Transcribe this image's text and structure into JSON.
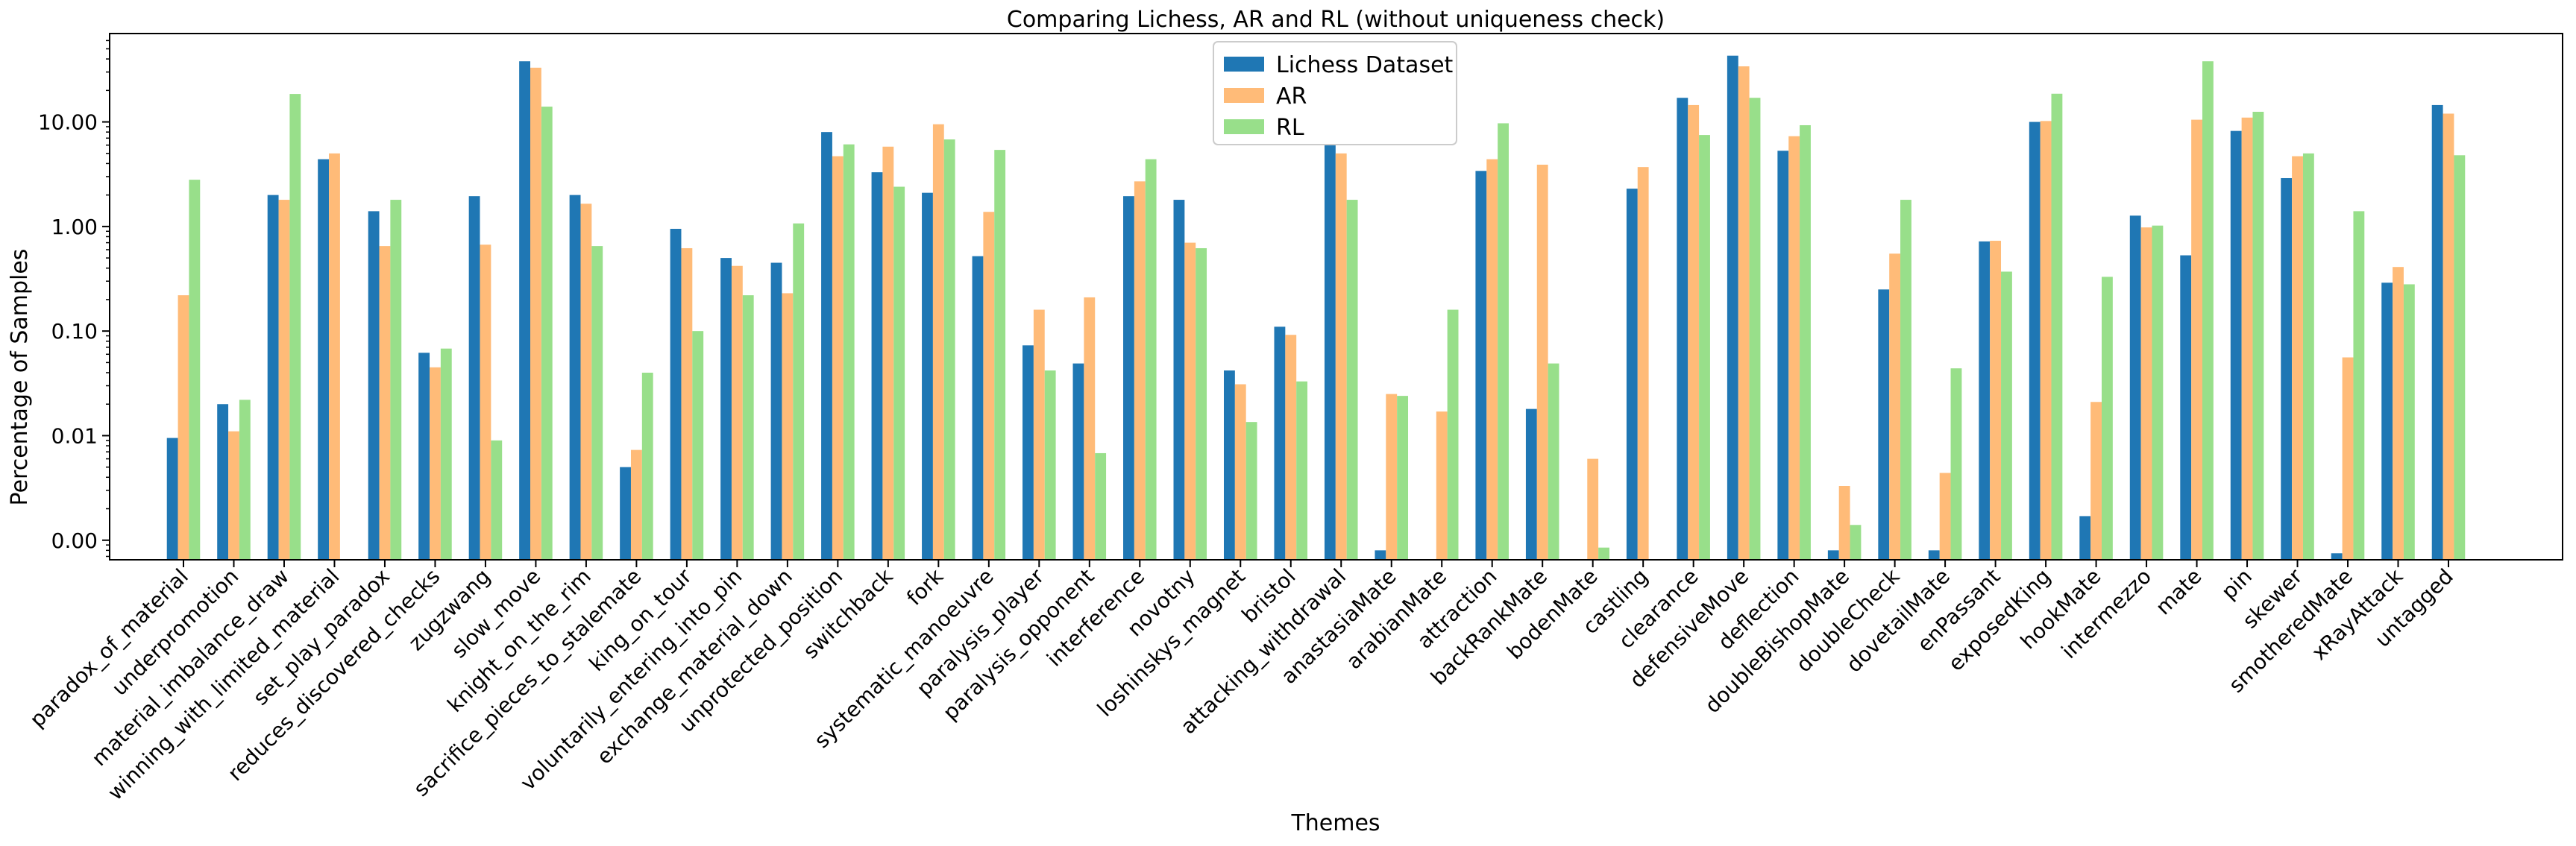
{
  "chart_data": {
    "type": "bar",
    "title": "Comparing Lichess, AR and RL (without uniqueness check)",
    "xlabel": "Themes",
    "ylabel": "Percentage of Samples",
    "yscale": "log",
    "ylim": [
      0.00065,
      70
    ],
    "yticks": [
      0.001,
      0.01,
      0.1,
      1,
      10
    ],
    "ytick_labels": [
      "0.00",
      "0.01",
      "0.10",
      "1.00",
      "10.00"
    ],
    "legend_position": "top-center",
    "categories": [
      "paradox_of_material",
      "underpromotion",
      "material_imbalance_draw",
      "winning_with_limited_material",
      "set_play_paradox",
      "reduces_discovered_checks",
      "zugzwang",
      "slow_move",
      "knight_on_the_rim",
      "sacrifice_pieces_to_stalemate",
      "king_on_tour",
      "voluntarily_entering_into_pin",
      "exchange_material_down",
      "unprotected_position",
      "switchback",
      "fork",
      "systematic_manoeuvre",
      "paralysis_player",
      "paralysis_opponent",
      "interference",
      "novotny",
      "loshinskys_magnet",
      "bristol",
      "attacking_withdrawal",
      "anastasiaMate",
      "arabianMate",
      "attraction",
      "backRankMate",
      "bodenMate",
      "castling",
      "clearance",
      "defensiveMove",
      "deflection",
      "doubleBishopMate",
      "doubleCheck",
      "dovetailMate",
      "enPassant",
      "exposedKing",
      "hookMate",
      "intermezzo",
      "mate",
      "pin",
      "skewer",
      "smotheredMate",
      "xRayAttack",
      "untagged"
    ],
    "series": [
      {
        "name": "Lichess Dataset",
        "color": "#1f77b4",
        "values": [
          0.0095,
          0.02,
          2.0,
          4.4,
          1.4,
          0.062,
          1.95,
          38,
          2.0,
          0.005,
          0.95,
          0.5,
          0.45,
          8.0,
          3.3,
          2.1,
          0.52,
          0.073,
          0.049,
          1.95,
          1.8,
          0.042,
          0.11,
          6.0,
          0.0008,
          null,
          3.4,
          0.018,
          null,
          2.3,
          17,
          43,
          5.3,
          0.0008,
          0.25,
          0.0008,
          0.72,
          10,
          0.0017,
          1.27,
          0.53,
          8.2,
          2.9,
          0.00075,
          0.29,
          14.5
        ]
      },
      {
        "name": "AR",
        "color": "#ffbb78",
        "values": [
          0.22,
          0.011,
          1.8,
          5.0,
          0.65,
          0.045,
          0.67,
          33,
          1.65,
          0.0073,
          0.62,
          0.42,
          0.23,
          4.7,
          5.8,
          9.5,
          1.38,
          0.16,
          0.21,
          2.7,
          0.7,
          0.031,
          0.092,
          5.0,
          0.025,
          0.017,
          4.4,
          3.9,
          0.006,
          3.7,
          14.5,
          34,
          7.3,
          0.0033,
          0.55,
          0.0044,
          0.73,
          10.2,
          0.021,
          0.98,
          10.5,
          11,
          4.7,
          0.056,
          0.41,
          12
        ]
      },
      {
        "name": "RL",
        "color": "#98df8a",
        "values": [
          2.8,
          0.022,
          18.5,
          null,
          1.8,
          0.068,
          0.009,
          14,
          0.65,
          0.04,
          0.1,
          0.22,
          1.07,
          6.1,
          2.4,
          6.8,
          5.4,
          0.042,
          0.0068,
          4.4,
          0.62,
          0.0135,
          0.033,
          1.8,
          0.024,
          0.16,
          9.7,
          0.049,
          0.00085,
          null,
          7.5,
          17,
          9.3,
          0.0014,
          1.8,
          0.044,
          0.37,
          18.6,
          0.33,
          1.02,
          38,
          12.5,
          5.0,
          1.4,
          0.28,
          4.8
        ]
      }
    ]
  }
}
